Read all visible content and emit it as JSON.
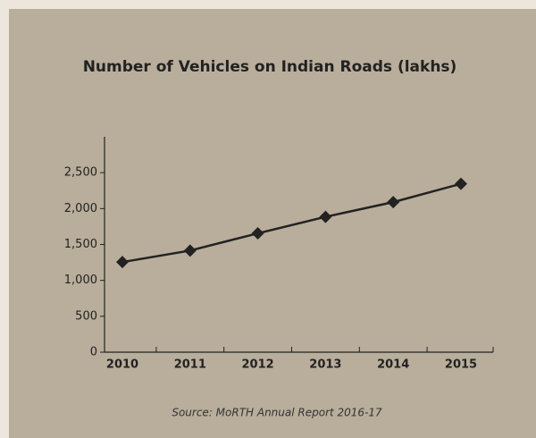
{
  "chart_data": {
    "type": "line",
    "title": "Number of Vehicles on Indian Roads (lakhs)",
    "source": "Source: MoRTH Annual Report 2016-17",
    "categories": [
      "2010",
      "2011",
      "2012",
      "2013",
      "2014",
      "2015"
    ],
    "series": [
      {
        "name": "Vehicles",
        "color": "#222222",
        "values": [
          1255,
          1415,
          1655,
          1885,
          2090,
          2345
        ]
      }
    ],
    "ylim": [
      0,
      3000
    ],
    "yticks": [
      0,
      500,
      {
        "value": 1000,
        "label": "1,000"
      },
      {
        "value": 1500,
        "label": "1,500"
      },
      {
        "value": 2000,
        "label": "2,000"
      },
      {
        "value": 2500,
        "label": "2,500"
      }
    ],
    "grid": false
  }
}
